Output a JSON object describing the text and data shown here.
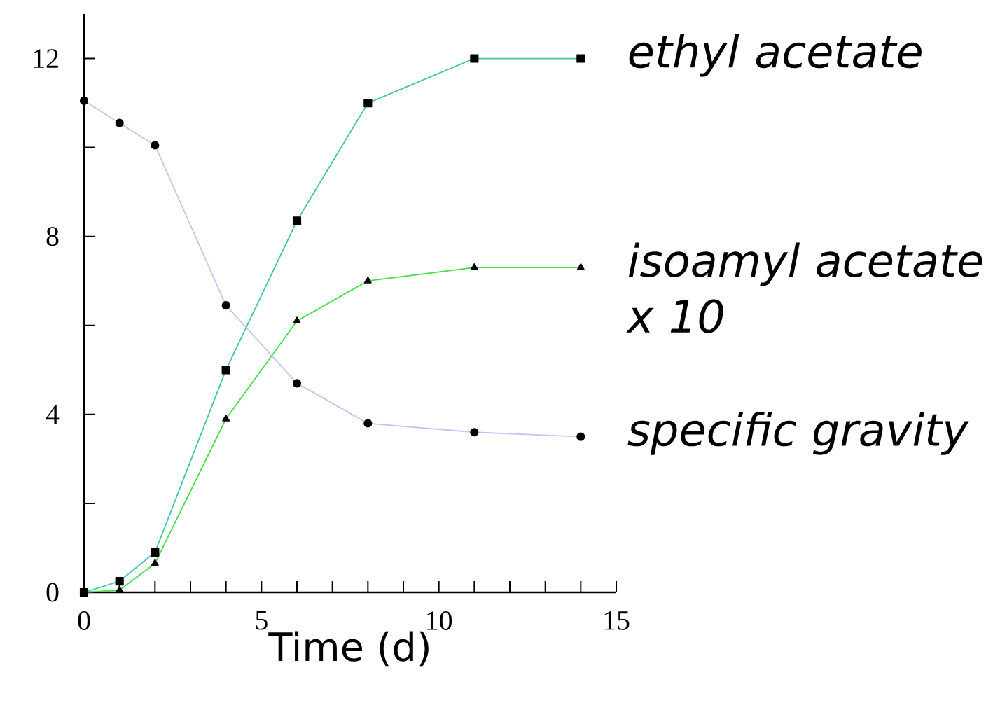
{
  "chart_data": {
    "type": "line",
    "xlabel": "Time (d)",
    "xlim": [
      0,
      15
    ],
    "ylim": [
      0,
      13
    ],
    "xticks": [
      0,
      {
        "value": 1,
        "label": null
      },
      {
        "value": 2,
        "label": null
      },
      {
        "value": 3,
        "label": null
      },
      {
        "value": 4,
        "label": null
      },
      5,
      {
        "value": 6,
        "label": null
      },
      {
        "value": 7,
        "label": null
      },
      {
        "value": 8,
        "label": null
      },
      {
        "value": 9,
        "label": null
      },
      10,
      {
        "value": 11,
        "label": null
      },
      {
        "value": 12,
        "label": null
      },
      {
        "value": 13,
        "label": null
      },
      {
        "value": 14,
        "label": null
      },
      15
    ],
    "yticks": [
      0,
      {
        "value": 2,
        "label": null
      },
      4,
      {
        "value": 6,
        "label": null
      },
      8,
      {
        "value": 10,
        "label": null
      },
      12
    ],
    "grid": false,
    "series": [
      {
        "name": "ethyl acetate",
        "color": "#3cc8a0",
        "marker": "square",
        "x": [
          0,
          1,
          2,
          4,
          6,
          8,
          11,
          14
        ],
        "values": [
          0,
          0.25,
          0.9,
          5.0,
          8.35,
          11.0,
          12.0,
          12.0
        ]
      },
      {
        "name": "isoamyl acetate x 10",
        "color": "#44e044",
        "marker": "triangle",
        "x": [
          0,
          1,
          2,
          4,
          6,
          8,
          11,
          14
        ],
        "values": [
          0,
          0.05,
          0.65,
          3.9,
          6.1,
          7.0,
          7.3,
          7.3
        ]
      },
      {
        "name": "specific gravity",
        "color": "#c4c4f4",
        "marker": "circle",
        "x": [
          0,
          1,
          2,
          4,
          6,
          8,
          11,
          14
        ],
        "values": [
          11.05,
          10.55,
          10.05,
          6.45,
          4.7,
          3.8,
          3.6,
          3.5
        ]
      }
    ]
  }
}
